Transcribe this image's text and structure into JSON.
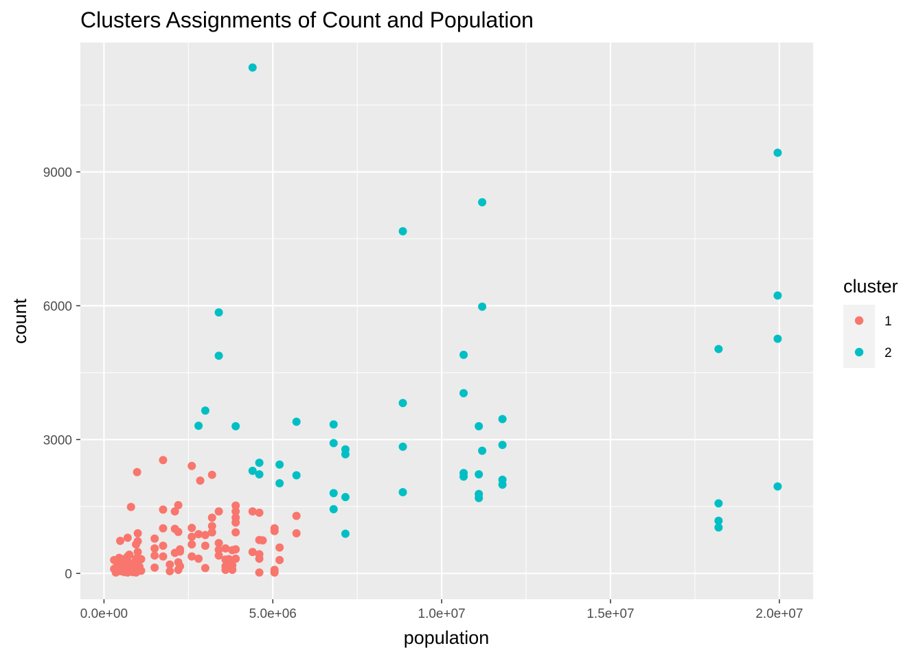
{
  "chart_data": {
    "type": "scatter",
    "title": "Clusters Assignments of Count and Population",
    "xlabel": "population",
    "ylabel": "count",
    "xlim": [
      -700000,
      21000000
    ],
    "ylim": [
      -580,
      11900
    ],
    "x_ticks": [
      0,
      5000000,
      10000000,
      15000000,
      20000000
    ],
    "x_tick_labels": [
      "0.0e+00",
      "5.0e+06",
      "1.0e+07",
      "1.5e+07",
      "2.0e+07"
    ],
    "y_ticks": [
      0,
      3000,
      6000,
      9000
    ],
    "y_tick_labels": [
      "0",
      "3000",
      "6000",
      "9000"
    ],
    "grid": true,
    "legend": {
      "title": "cluster",
      "position": "right"
    },
    "series": [
      {
        "name": "1",
        "color": "#F8766D",
        "points": [
          [
            300000,
            100
          ],
          [
            300000,
            300
          ],
          [
            350000,
            20
          ],
          [
            400000,
            80
          ],
          [
            400000,
            200
          ],
          [
            450000,
            150
          ],
          [
            450000,
            350
          ],
          [
            480000,
            730
          ],
          [
            500000,
            50
          ],
          [
            500000,
            250
          ],
          [
            550000,
            120
          ],
          [
            600000,
            30
          ],
          [
            600000,
            180
          ],
          [
            600000,
            320
          ],
          [
            650000,
            80
          ],
          [
            650000,
            260
          ],
          [
            700000,
            20
          ],
          [
            700000,
            140
          ],
          [
            700000,
            380
          ],
          [
            700000,
            800
          ],
          [
            750000,
            100
          ],
          [
            750000,
            240
          ],
          [
            750000,
            420
          ],
          [
            800000,
            60
          ],
          [
            800000,
            160
          ],
          [
            800000,
            1490
          ],
          [
            850000,
            30
          ],
          [
            850000,
            200
          ],
          [
            900000,
            120
          ],
          [
            950000,
            20
          ],
          [
            950000,
            330
          ],
          [
            950000,
            650
          ],
          [
            980000,
            2270
          ],
          [
            1000000,
            80
          ],
          [
            1000000,
            250
          ],
          [
            1000000,
            480
          ],
          [
            1000000,
            720
          ],
          [
            1000000,
            900
          ],
          [
            1050000,
            150
          ],
          [
            1100000,
            60
          ],
          [
            1100000,
            320
          ],
          [
            1500000,
            130
          ],
          [
            1500000,
            400
          ],
          [
            1500000,
            560
          ],
          [
            1500000,
            780
          ],
          [
            1750000,
            380
          ],
          [
            1750000,
            620
          ],
          [
            1750000,
            1010
          ],
          [
            1750000,
            1430
          ],
          [
            1750000,
            2540
          ],
          [
            1950000,
            50
          ],
          [
            1950000,
            200
          ],
          [
            2100000,
            460
          ],
          [
            2100000,
            1000
          ],
          [
            2100000,
            1390
          ],
          [
            2200000,
            80
          ],
          [
            2200000,
            250
          ],
          [
            2200000,
            930
          ],
          [
            2200000,
            1530
          ],
          [
            2250000,
            160
          ],
          [
            2250000,
            490
          ],
          [
            2250000,
            540
          ],
          [
            2600000,
            380
          ],
          [
            2600000,
            650
          ],
          [
            2600000,
            820
          ],
          [
            2600000,
            1020
          ],
          [
            2600000,
            2410
          ],
          [
            2800000,
            330
          ],
          [
            2800000,
            880
          ],
          [
            2850000,
            2080
          ],
          [
            3000000,
            120
          ],
          [
            3000000,
            620
          ],
          [
            3000000,
            860
          ],
          [
            3200000,
            920
          ],
          [
            3200000,
            1060
          ],
          [
            3200000,
            1250
          ],
          [
            3200000,
            2210
          ],
          [
            3400000,
            400
          ],
          [
            3400000,
            530
          ],
          [
            3400000,
            680
          ],
          [
            3400000,
            1390
          ],
          [
            3600000,
            80
          ],
          [
            3600000,
            160
          ],
          [
            3600000,
            310
          ],
          [
            3600000,
            560
          ],
          [
            3700000,
            320
          ],
          [
            3800000,
            80
          ],
          [
            3800000,
            180
          ],
          [
            3800000,
            520
          ],
          [
            3900000,
            330
          ],
          [
            3900000,
            540
          ],
          [
            3900000,
            920
          ],
          [
            3900000,
            1140
          ],
          [
            3900000,
            1250
          ],
          [
            3900000,
            1390
          ],
          [
            3900000,
            1520
          ],
          [
            4400000,
            480
          ],
          [
            4400000,
            1390
          ],
          [
            4600000,
            20
          ],
          [
            4600000,
            330
          ],
          [
            4600000,
            430
          ],
          [
            4600000,
            750
          ],
          [
            4600000,
            1360
          ],
          [
            4700000,
            740
          ],
          [
            5050000,
            20
          ],
          [
            5050000,
            80
          ],
          [
            5050000,
            950
          ],
          [
            5050000,
            1010
          ],
          [
            5200000,
            300
          ],
          [
            5200000,
            580
          ],
          [
            5700000,
            900
          ],
          [
            5700000,
            1290
          ]
        ]
      },
      {
        "name": "2",
        "color": "#00BFC4",
        "points": [
          [
            4400000,
            11340
          ],
          [
            3400000,
            5850
          ],
          [
            3400000,
            4880
          ],
          [
            3000000,
            3650
          ],
          [
            2800000,
            3310
          ],
          [
            3900000,
            3300
          ],
          [
            4400000,
            2300
          ],
          [
            4600000,
            2480
          ],
          [
            4600000,
            2220
          ],
          [
            5200000,
            2440
          ],
          [
            5200000,
            2020
          ],
          [
            5700000,
            3400
          ],
          [
            5700000,
            2200
          ],
          [
            6800000,
            3340
          ],
          [
            6800000,
            2920
          ],
          [
            6800000,
            1800
          ],
          [
            6800000,
            1440
          ],
          [
            7150000,
            2780
          ],
          [
            7150000,
            2670
          ],
          [
            7150000,
            1710
          ],
          [
            7150000,
            890
          ],
          [
            8850000,
            7670
          ],
          [
            8850000,
            3820
          ],
          [
            8850000,
            2840
          ],
          [
            8850000,
            1820
          ],
          [
            10650000,
            4900
          ],
          [
            10650000,
            4040
          ],
          [
            10650000,
            2250
          ],
          [
            10650000,
            2170
          ],
          [
            11100000,
            3300
          ],
          [
            11100000,
            2220
          ],
          [
            11100000,
            1780
          ],
          [
            11100000,
            1690
          ],
          [
            11200000,
            8320
          ],
          [
            11200000,
            5980
          ],
          [
            11200000,
            2750
          ],
          [
            11800000,
            3460
          ],
          [
            11800000,
            2880
          ],
          [
            11800000,
            2100
          ],
          [
            11800000,
            1990
          ],
          [
            18200000,
            5030
          ],
          [
            18200000,
            1570
          ],
          [
            18200000,
            1180
          ],
          [
            18200000,
            1030
          ],
          [
            19950000,
            9430
          ],
          [
            19950000,
            6230
          ],
          [
            19950000,
            5260
          ],
          [
            19950000,
            1950
          ]
        ]
      }
    ]
  }
}
